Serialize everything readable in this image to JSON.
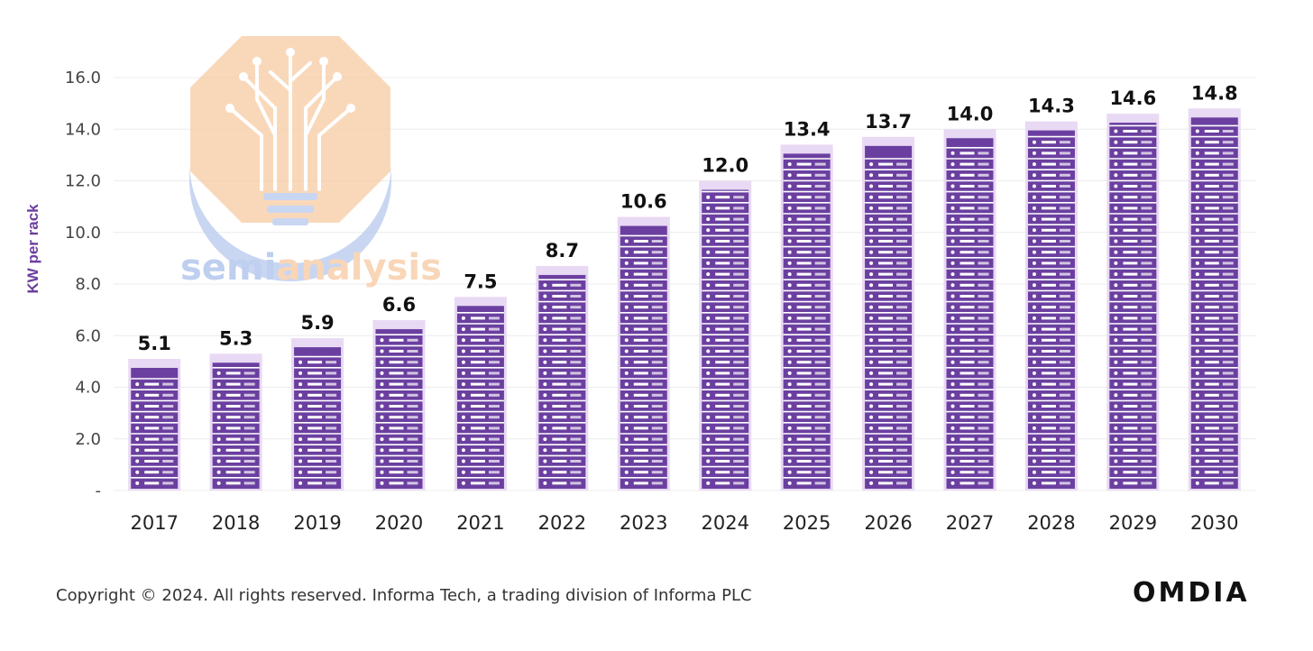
{
  "chart_data": {
    "type": "bar",
    "ylabel": "KW per rack",
    "categories": [
      "2017",
      "2018",
      "2019",
      "2020",
      "2021",
      "2022",
      "2023",
      "2024",
      "2025",
      "2026",
      "2027",
      "2028",
      "2029",
      "2030"
    ],
    "values": [
      5.1,
      5.3,
      5.9,
      6.6,
      7.5,
      8.7,
      10.6,
      12.0,
      13.4,
      13.7,
      14.0,
      14.3,
      14.6,
      14.8
    ],
    "value_labels": [
      "5.1",
      "5.3",
      "5.9",
      "6.6",
      "7.5",
      "8.7",
      "10.6",
      "12.0",
      "13.4",
      "13.7",
      "14.0",
      "14.3",
      "14.6",
      "14.8"
    ],
    "y_ticks": [
      0,
      2,
      4,
      6,
      8,
      10,
      12,
      14,
      16
    ],
    "y_tick_labels": [
      "-",
      "2.0",
      "4.0",
      "6.0",
      "8.0",
      "10.0",
      "12.0",
      "14.0",
      "16.0"
    ],
    "ylim": [
      0,
      16
    ],
    "grid": true,
    "legend": "none",
    "colors": {
      "bar": "#6b3fa0",
      "bar_light": "#e8d9f4",
      "stripe": "#ffffff",
      "ylabel": "#6b3fa0"
    }
  },
  "watermark": {
    "text_left": "semi",
    "text_right": "analysis",
    "colors": {
      "left": "#a9c0ea",
      "right": "#f6c9a0"
    }
  },
  "footer": {
    "copyright": "Copyright © 2024. All rights reserved. Informa Tech, a trading division of Informa PLC",
    "brand": "OMDIA"
  }
}
